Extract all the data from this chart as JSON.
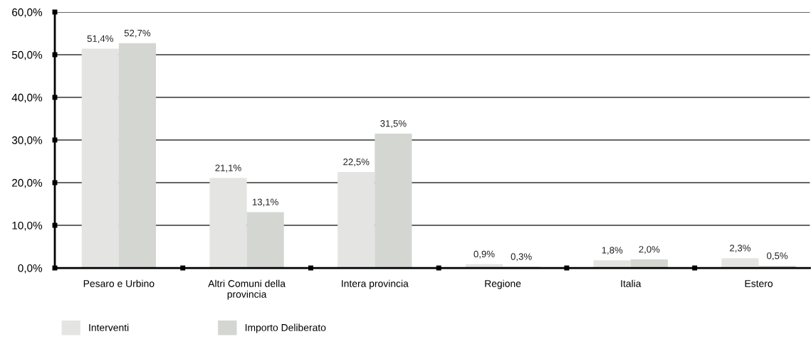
{
  "chart_data": {
    "type": "bar",
    "categories": [
      "Pesaro e Urbino",
      "Altri Comuni della\nprovincia",
      "Intera provincia",
      "Regione",
      "Italia",
      "Estero"
    ],
    "series": [
      {
        "name": "Interventi",
        "color": "#e4e4e2",
        "values": [
          51.4,
          21.1,
          22.5,
          0.9,
          1.8,
          2.3
        ],
        "value_labels": [
          "51,4%",
          "21,1%",
          "22,5%",
          "0,9%",
          "1,8%",
          "2,3%"
        ]
      },
      {
        "name": "Importo Deliberato",
        "color": "#d4d6d1",
        "values": [
          52.7,
          13.1,
          31.5,
          0.3,
          2.0,
          0.5
        ],
        "value_labels": [
          "52,7%",
          "13,1%",
          "31,5%",
          "0,3%",
          "2,0%",
          "0,5%"
        ]
      }
    ],
    "ylim": [
      0,
      60
    ],
    "yticks": [
      {
        "value": 0,
        "label": "0,0%"
      },
      {
        "value": 10,
        "label": "10,0%"
      },
      {
        "value": 20,
        "label": "20,0%"
      },
      {
        "value": 30,
        "label": "30,0%"
      },
      {
        "value": 40,
        "label": "40,0%"
      },
      {
        "value": 50,
        "label": "50,0%"
      },
      {
        "value": 60,
        "label": "60,0%"
      }
    ],
    "grid": "y",
    "legend": "bottom left"
  }
}
